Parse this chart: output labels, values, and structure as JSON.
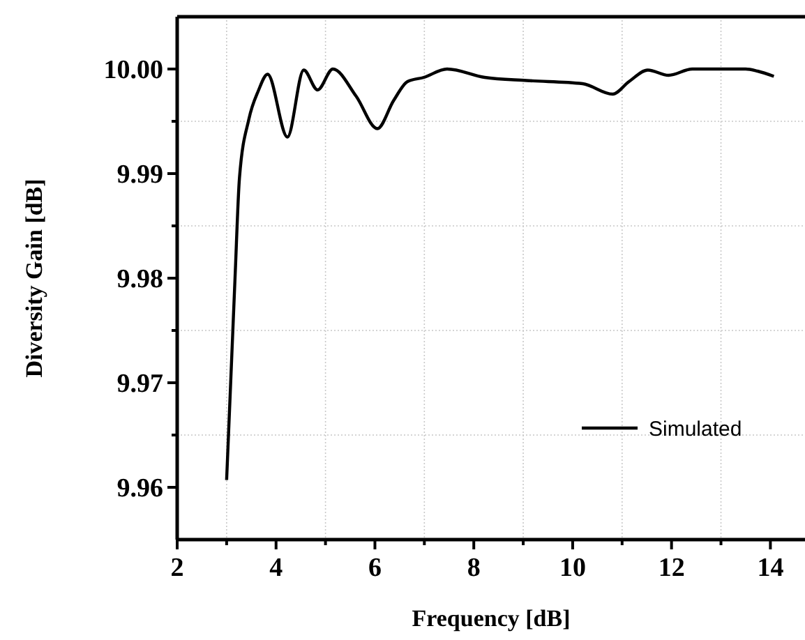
{
  "chart_data": {
    "type": "line",
    "xlabel": "Frequency [dB]",
    "ylabel": "Diversity Gain [dB]",
    "xlim": [
      2,
      14.7
    ],
    "ylim": [
      9.955,
      10.005
    ],
    "xticks": [
      2,
      {
        "value": 3,
        "label": null
      },
      4,
      {
        "value": 5,
        "label": null
      },
      6,
      {
        "value": 7,
        "label": null
      },
      8,
      {
        "value": 9,
        "label": null
      },
      10,
      {
        "value": 11,
        "label": null
      },
      12,
      {
        "value": 13,
        "label": null
      },
      14
    ],
    "yticks": [
      {
        "value": 9.96,
        "label": "9.96"
      },
      {
        "value": 9.965,
        "label": null
      },
      {
        "value": 9.97,
        "label": "9.97"
      },
      {
        "value": 9.975,
        "label": null
      },
      {
        "value": 9.98,
        "label": "9.98"
      },
      {
        "value": 9.985,
        "label": null
      },
      {
        "value": 9.99,
        "label": "9.99"
      },
      {
        "value": 9.995,
        "label": null
      },
      {
        "value": 10.0,
        "label": "10.00"
      }
    ],
    "grid": true,
    "legend": "bottom right",
    "line_style": "solid",
    "series": [
      {
        "name": "Simulated",
        "color": "#000000",
        "x": [
          3.0,
          3.17,
          3.26,
          3.45,
          3.64,
          3.83,
          4.23,
          4.56,
          4.84,
          5.15,
          5.62,
          6.05,
          6.38,
          6.66,
          6.99,
          7.46,
          8.22,
          9.07,
          10.2,
          10.81,
          11.14,
          11.52,
          11.94,
          12.42,
          13.5,
          13.74,
          14.07
        ],
        "values": [
          9.9607,
          9.98,
          9.9896,
          9.9952,
          9.9979,
          9.9995,
          9.9935,
          9.9999,
          9.998,
          10.0,
          9.9974,
          9.9943,
          9.997,
          9.9988,
          9.9992,
          10.0,
          9.9992,
          9.9989,
          9.9986,
          9.9976,
          9.9988,
          9.9999,
          9.9994,
          10.0,
          10.0,
          9.9998,
          9.9993
        ]
      }
    ]
  }
}
